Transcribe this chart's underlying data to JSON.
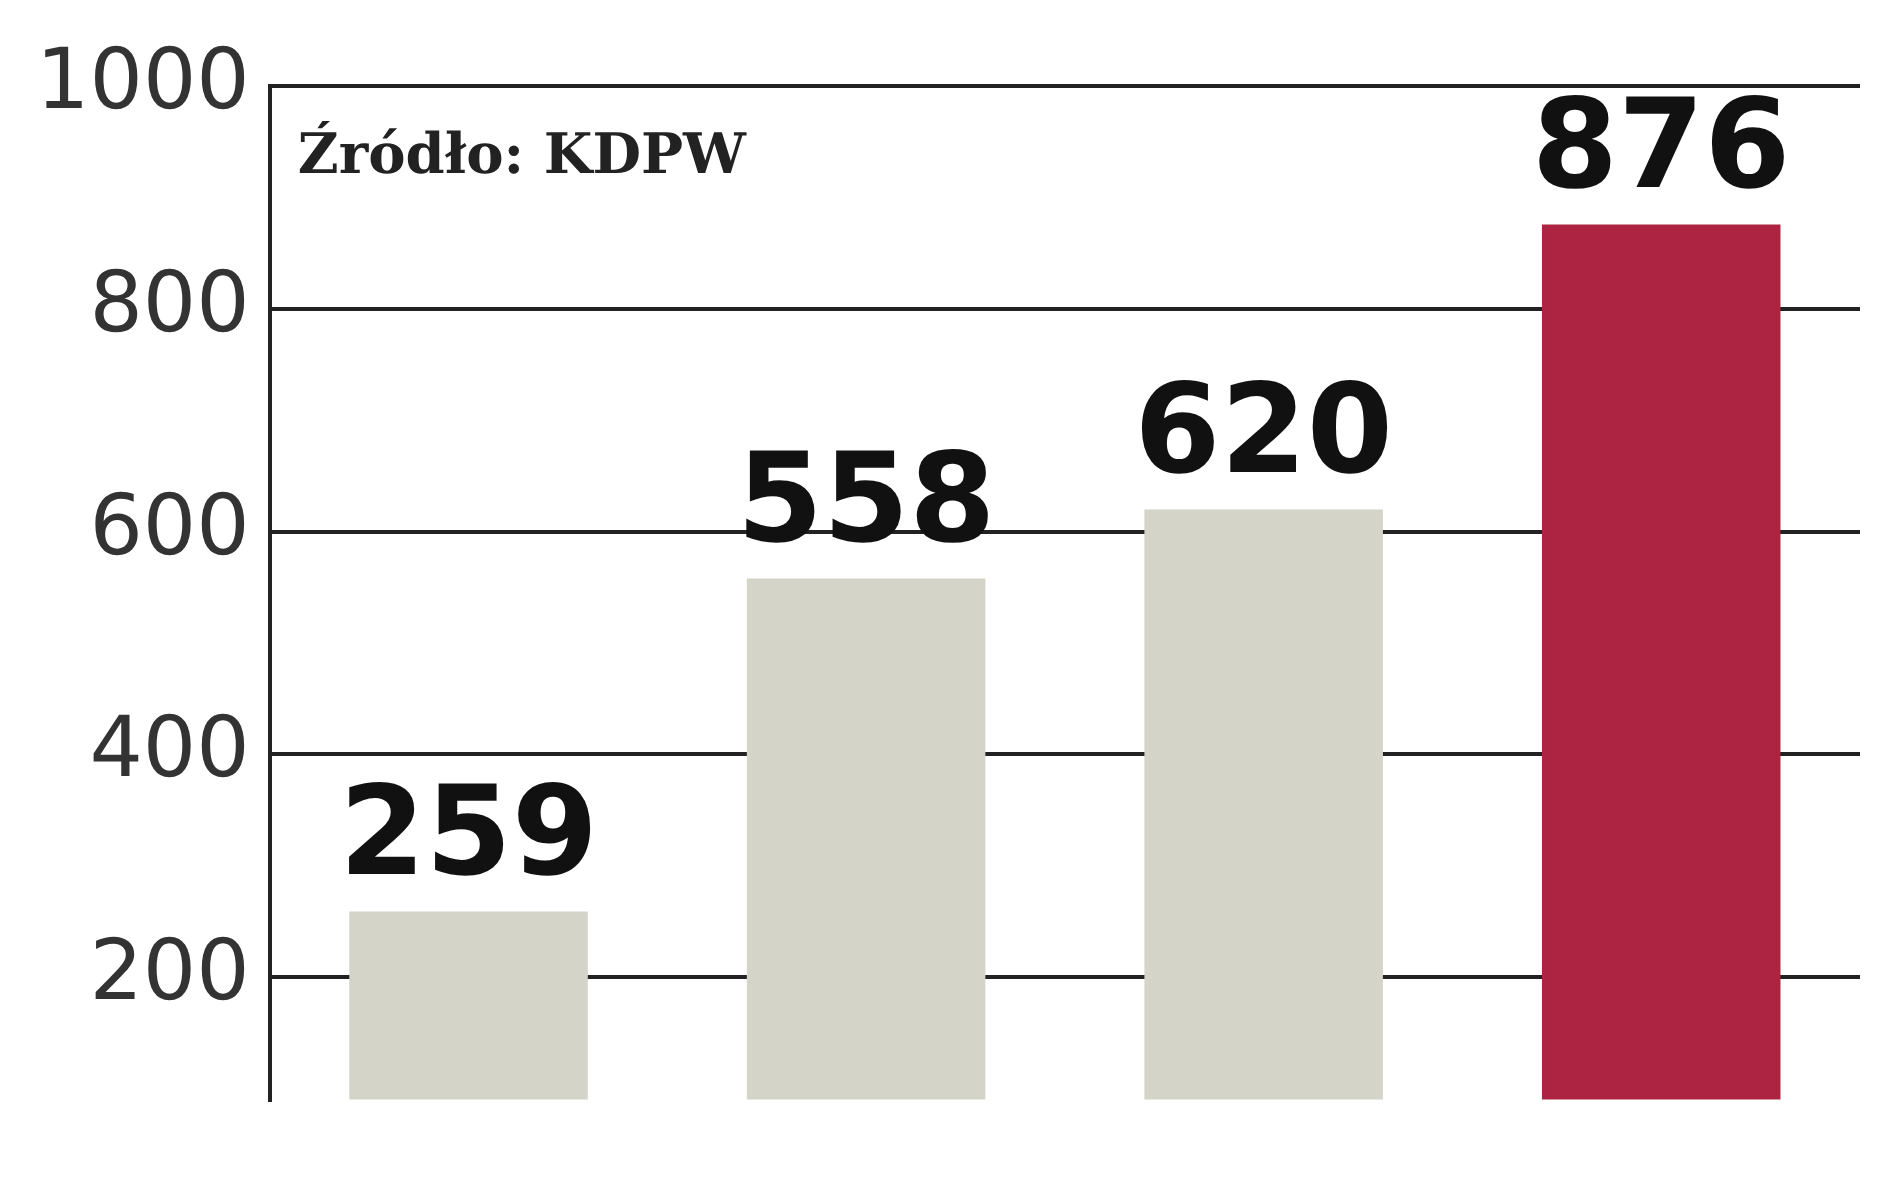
{
  "chart_data": {
    "type": "bar",
    "categories": [
      null,
      null,
      null,
      null
    ],
    "values": [
      259,
      558,
      620,
      876
    ],
    "colors": [
      "#d4d4c8",
      "#d4d4c8",
      "#d4d4c8",
      "#ad2442"
    ],
    "ylim": [
      90,
      1000
    ],
    "yticks": [
      200,
      400,
      600,
      800,
      1000
    ],
    "grid": "y",
    "data_labels": true,
    "annotations": [
      "Źródło: KDPW"
    ]
  }
}
